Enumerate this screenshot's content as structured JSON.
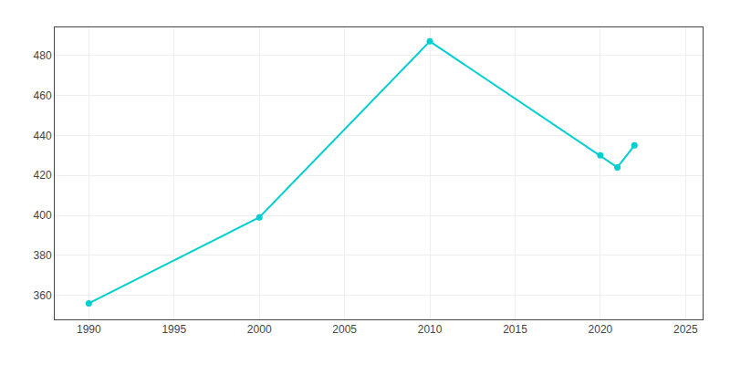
{
  "chart_data": {
    "type": "line",
    "x": [
      1990,
      2000,
      2010,
      2020,
      2021,
      2022
    ],
    "values": [
      356,
      399,
      487,
      430,
      424,
      435
    ],
    "color": "#00CED1",
    "marker": "circle",
    "xlim": [
      1988,
      2026
    ],
    "xticks": [
      1990,
      1995,
      2000,
      2005,
      2010,
      2015,
      2020,
      2025
    ],
    "ylim": [
      348,
      494
    ],
    "yticks": [
      360,
      380,
      400,
      420,
      440,
      460,
      480
    ],
    "grid": true
  }
}
